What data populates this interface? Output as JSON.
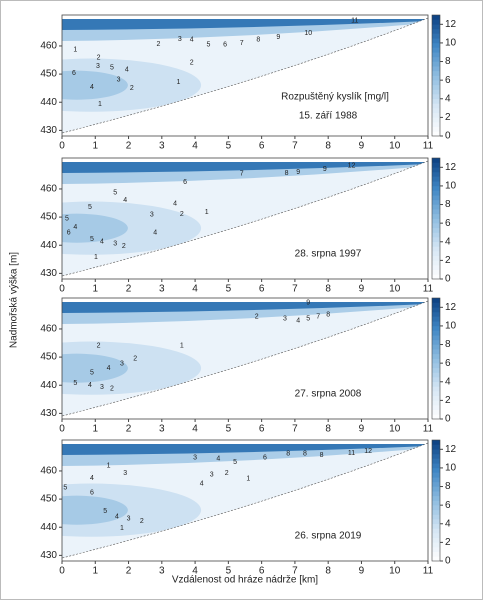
{
  "figure": {
    "xlabel": "Vzdálenost od hráze nádrže [km]",
    "ylabel": "Nadmořská výška [m]"
  },
  "chart_data": [
    {
      "type": "contour",
      "title": "15. září 1988",
      "colorbar_label": "Rozpuštěný kyslík [mg/l]",
      "xlim": [
        0,
        11
      ],
      "xticks": [
        0,
        1,
        2,
        3,
        4,
        5,
        6,
        7,
        8,
        9,
        10,
        11
      ],
      "ylim": [
        428,
        471
      ],
      "yticks": [
        430,
        440,
        450,
        460
      ],
      "clim": [
        0,
        13
      ],
      "cticks": [
        0,
        2,
        4,
        6,
        8,
        10,
        12
      ],
      "colormap": [
        "#ffffff",
        "#d6e6f4",
        "#8fbde0",
        "#3f86c4",
        "#0b3f80"
      ],
      "contour_labels": {
        "x": [
          0.4,
          1.1,
          1.08,
          1.5,
          1.95,
          0.36,
          1.7,
          0.9,
          2.1,
          1.14,
          2.9,
          3.54,
          3.9,
          4.4,
          4.9,
          5.4,
          5.9,
          6.5,
          7.4,
          8.8,
          3.9,
          3.5
        ],
        "y": [
          458.6,
          455.8,
          452.9,
          452.2,
          451.5,
          450.4,
          448,
          445.4,
          445,
          439.4,
          460.7,
          462.5,
          462.2,
          460.4,
          460.4,
          461,
          462.2,
          463.2,
          464.6,
          469,
          454,
          447.2
        ],
        "values": [
          1,
          2,
          3,
          5,
          4,
          6,
          3,
          4,
          2,
          1,
          2,
          3,
          4,
          5,
          6,
          7,
          8,
          9,
          10,
          11,
          2,
          1
        ]
      }
    },
    {
      "type": "contour",
      "title": "28. srpna 1997",
      "xlim": [
        0,
        11
      ],
      "xticks": [
        0,
        1,
        2,
        3,
        4,
        5,
        6,
        7,
        8,
        9,
        10,
        11
      ],
      "ylim": [
        428,
        471
      ],
      "yticks": [
        430,
        440,
        450,
        460
      ],
      "clim": [
        0,
        13
      ],
      "cticks": [
        0,
        2,
        4,
        6,
        8,
        10,
        12
      ],
      "colormap": [
        "#ffffff",
        "#d6e6f4",
        "#8fbde0",
        "#3f86c4",
        "#0b3f80"
      ],
      "contour_labels": {
        "x": [
          5.4,
          3.7,
          6.75,
          7.1,
          7.9,
          8.7,
          1.6,
          1.9,
          0.84,
          3.4,
          2.7,
          3.6,
          4.35,
          0.15,
          0.4,
          0.2,
          0.9,
          1.2,
          1.6,
          1.86,
          2.8,
          1.02
        ],
        "y": [
          465.4,
          462.5,
          465.7,
          466,
          467.1,
          468.2,
          458.6,
          456.1,
          453.6,
          454.7,
          450.8,
          451.1,
          451.8,
          449.4,
          446.5,
          444.4,
          442.2,
          441.2,
          440.5,
          439.7,
          444.4,
          435.8
        ],
        "values": [
          7,
          6,
          8,
          9,
          9,
          12,
          5,
          4,
          5,
          4,
          3,
          2,
          1,
          5,
          4,
          6,
          5,
          4,
          3,
          2,
          4,
          1
        ]
      }
    },
    {
      "type": "contour",
      "title": "27. srpna 2008",
      "xlim": [
        0,
        11
      ],
      "xticks": [
        0,
        1,
        2,
        3,
        4,
        5,
        6,
        7,
        8,
        9,
        10,
        11
      ],
      "ylim": [
        428,
        471
      ],
      "yticks": [
        430,
        440,
        450,
        460
      ],
      "clim": [
        0,
        13
      ],
      "cticks": [
        0,
        2,
        4,
        6,
        8,
        10,
        12
      ],
      "colormap": [
        "#ffffff",
        "#d6e6f4",
        "#8fbde0",
        "#3f86c4",
        "#0b3f80"
      ],
      "contour_labels": {
        "x": [
          7.4,
          5.85,
          6.7,
          7.1,
          7.4,
          7.7,
          8.0,
          1.1,
          3.6,
          2.2,
          1.8,
          1.4,
          0.9,
          0.4,
          0.84,
          1.2,
          1.5
        ],
        "y": [
          469.3,
          464.3,
          463.6,
          462.9,
          463.6,
          464.3,
          465,
          454,
          454,
          449.4,
          447.6,
          446.1,
          444.4,
          440.8,
          440.1,
          439.4,
          438.7
        ],
        "values": [
          9,
          2,
          3,
          4,
          5,
          7,
          8,
          2,
          1,
          2,
          3,
          4,
          5,
          5,
          4,
          3,
          2
        ]
      }
    },
    {
      "type": "contour",
      "title": "26. srpna 2019",
      "xlim": [
        0,
        11
      ],
      "xticks": [
        0,
        1,
        2,
        3,
        4,
        5,
        6,
        7,
        8,
        9,
        10,
        11
      ],
      "ylim": [
        428,
        471
      ],
      "yticks": [
        430,
        440,
        450,
        460
      ],
      "clim": [
        0,
        13
      ],
      "cticks": [
        0,
        2,
        4,
        6,
        8,
        10,
        12
      ],
      "colormap": [
        "#ffffff",
        "#d6e6f4",
        "#8fbde0",
        "#3f86c4",
        "#0b3f80"
      ],
      "contour_labels": {
        "x": [
          4.0,
          4.7,
          5.2,
          6.1,
          6.8,
          7.3,
          7.8,
          8.7,
          9.2,
          1.4,
          1.9,
          0.9,
          0.1,
          4.95,
          4.5,
          5.6,
          4.2,
          0.9,
          1.3,
          1.65,
          2.0,
          2.4,
          1.8
        ],
        "y": [
          464.7,
          464.3,
          463.2,
          464.7,
          466.1,
          466.1,
          465.7,
          466.4,
          467.1,
          461.8,
          459.3,
          457.5,
          454,
          459.3,
          458.6,
          457.2,
          455.4,
          452.2,
          445.8,
          443.7,
          443,
          442.2,
          439.7
        ],
        "values": [
          3,
          4,
          5,
          6,
          8,
          8,
          8,
          11,
          12,
          1,
          3,
          4,
          5,
          2,
          3,
          1,
          4,
          6,
          5,
          4,
          3,
          2,
          1
        ]
      }
    }
  ]
}
